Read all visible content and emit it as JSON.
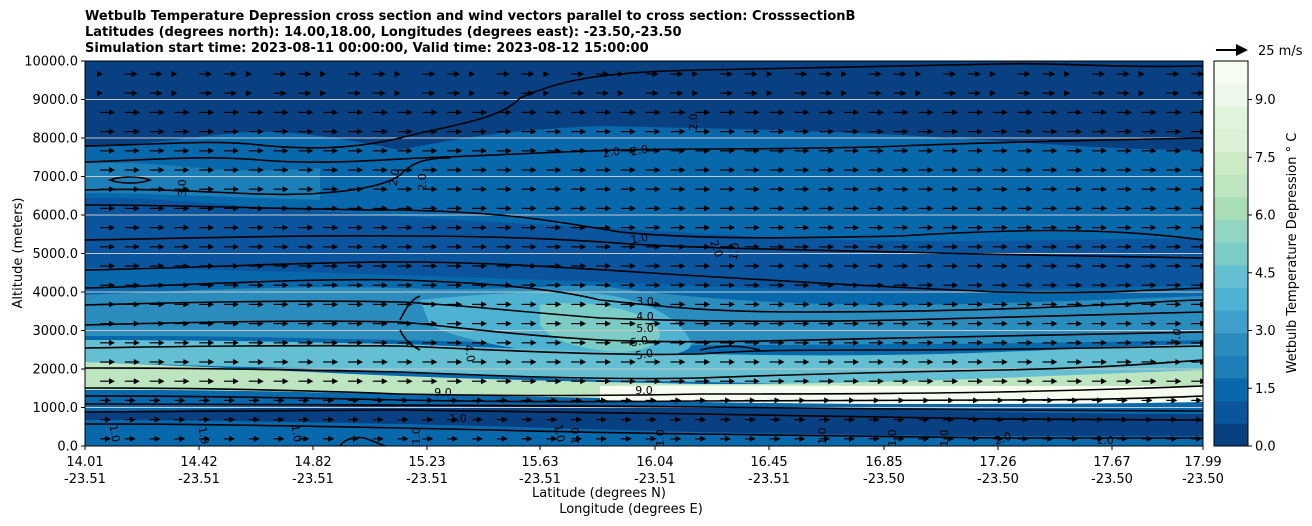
{
  "chart_data": {
    "type": "contour",
    "title_lines": [
      "Wetbulb Temperature Depression cross section and wind vectors parallel to cross section: CrosssectionB",
      "Latitudes (degrees north): 14.00,18.00, Longitudes (degrees east): -23.50,-23.50",
      "Simulation start time: 2023-08-11 00:00:00, Valid time: 2023-08-12 15:00:00"
    ],
    "ylabel": "Altitude (meters)",
    "xlabel_line1": "Latitude (degrees N)",
    "xlabel_line2": "Longitude (degrees E)",
    "y_ticks": [
      "0.0",
      "1000.0",
      "2000.0",
      "3000.0",
      "4000.0",
      "5000.0",
      "6000.0",
      "7000.0",
      "8000.0",
      "9000.0",
      "10000.0"
    ],
    "ylim": [
      0,
      10000
    ],
    "x_ticks": [
      {
        "lat": "14.01",
        "lon": "-23.51"
      },
      {
        "lat": "14.42",
        "lon": "-23.51"
      },
      {
        "lat": "14.82",
        "lon": "-23.51"
      },
      {
        "lat": "15.23",
        "lon": "-23.51"
      },
      {
        "lat": "15.63",
        "lon": "-23.51"
      },
      {
        "lat": "16.04",
        "lon": "-23.51"
      },
      {
        "lat": "16.45",
        "lon": "-23.51"
      },
      {
        "lat": "16.85",
        "lon": "-23.50"
      },
      {
        "lat": "17.26",
        "lon": "-23.50"
      },
      {
        "lat": "17.67",
        "lon": "-23.50"
      },
      {
        "lat": "17.99",
        "lon": "-23.50"
      }
    ],
    "colorbar": {
      "label": "Wetbulb Temperature Depression ° C",
      "min": 0,
      "max": 10,
      "ticks": [
        "0.0",
        "1.5",
        "3.0",
        "4.5",
        "6.0",
        "7.5",
        "9.0"
      ],
      "colors": [
        "#084081",
        "#0a559d",
        "#0868ac",
        "#1c7fb8",
        "#2b8cbe",
        "#3f9fcb",
        "#4eb3d3",
        "#64bfd2",
        "#7bccc4",
        "#92d5c5",
        "#a8ddb5",
        "#bde5bf",
        "#ccebc5",
        "#dcf1d6",
        "#e0f3db",
        "#eef8ea",
        "#f7fcf0"
      ]
    },
    "wind_key": {
      "label": "25 m/s"
    },
    "contour_labels": [
      "3.0",
      "2.0",
      "2.0",
      "1.0",
      "2.0",
      "1.0",
      "2.0",
      "3.0",
      "4.0",
      "5.0",
      "5.0",
      "5.0",
      "4.0",
      "9.0",
      "9.0",
      "1.0",
      "7.0",
      "1.0",
      "1.0",
      "1.0",
      "1.0",
      "1.0",
      "1.0",
      "1.0",
      "1.0",
      "1.0",
      "1.0",
      "2.0",
      "1.0",
      "2.0",
      "2.0"
    ],
    "grid": true
  }
}
